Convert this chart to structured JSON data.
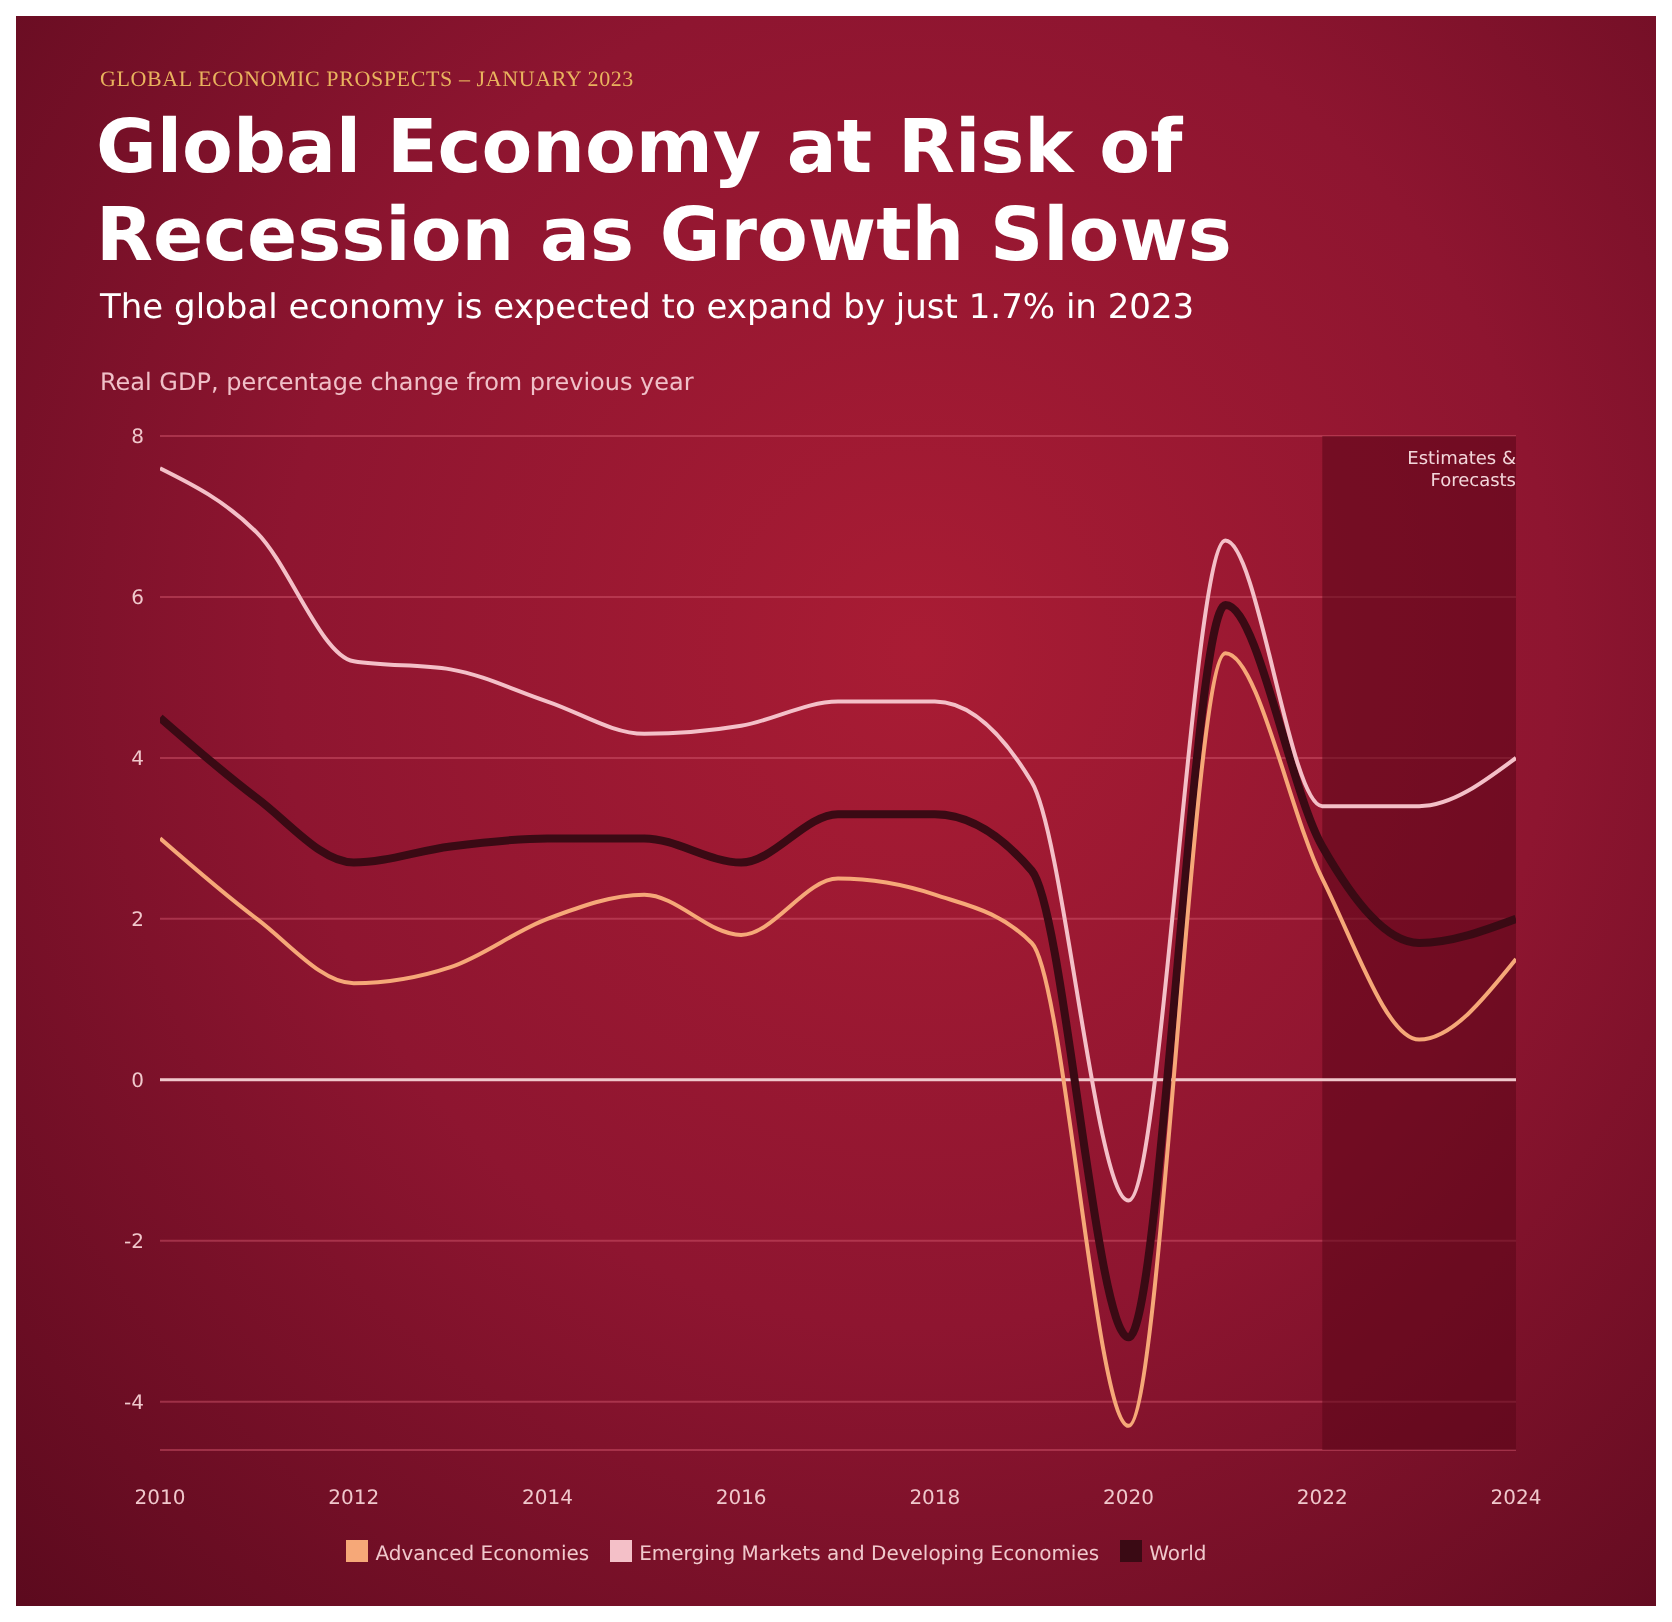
{
  "chart_data": {
    "type": "line",
    "title": "Global Economy at Risk of Recession as Growth Slows",
    "subtitle": "The global economy is expected to expand by just 1.7% in 2023",
    "annotations": [
      "GLOBAL ECONOMIC PROSPECTS – JANUARY 2023"
    ],
    "ylabel": "Real GDP, percentage change from previous year",
    "x": [
      2010,
      2011,
      2012,
      2013,
      2014,
      2015,
      2016,
      2017,
      2018,
      2019,
      2020,
      2021,
      2022,
      2023,
      2024
    ],
    "series": [
      {
        "name": "World",
        "color": "#3a0a14",
        "values": [
          4.5,
          3.5,
          2.7,
          2.9,
          3.0,
          3.0,
          2.7,
          3.3,
          3.3,
          2.6,
          -3.2,
          5.9,
          2.9,
          1.7,
          2.0
        ]
      },
      {
        "name": "Emerging Markets and Developing Economies",
        "color": "#f4c0c8",
        "values": [
          7.6,
          6.8,
          5.2,
          5.1,
          4.7,
          4.3,
          4.4,
          4.7,
          4.7,
          3.7,
          -1.5,
          6.7,
          3.4,
          3.4,
          4.0
        ]
      },
      {
        "name": "Advanced Economies",
        "color": "#f6a878",
        "values": [
          3.0,
          2.0,
          1.2,
          1.4,
          2.0,
          2.3,
          1.8,
          2.5,
          2.3,
          1.7,
          -4.3,
          5.3,
          2.5,
          0.5,
          1.5
        ]
      }
    ],
    "xlim": [
      2010,
      2024
    ],
    "xticks": [
      2010,
      2012,
      2014,
      2016,
      2018,
      2020,
      2022,
      2024
    ],
    "ylim": [
      -4.6,
      8
    ],
    "yticks": [
      -4,
      -2,
      0,
      2,
      4,
      6,
      8
    ],
    "grid": "y",
    "legend": "bottom",
    "marker": "none",
    "line_style": "solid",
    "ref_lines": [
      {
        "axis": "y",
        "value": 0,
        "color": "#f0c8cc"
      }
    ],
    "bands": [
      {
        "axis": "x",
        "from": 2022,
        "to": 2024,
        "label": "Estimates & Forecasts",
        "color": "#5a0618"
      }
    ]
  }
}
